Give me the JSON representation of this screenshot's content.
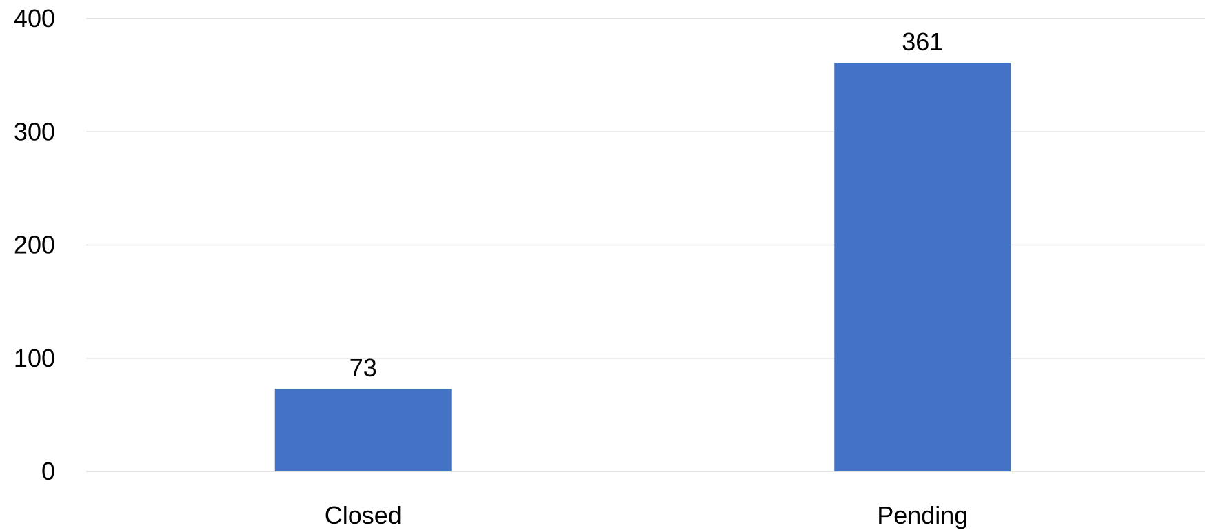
{
  "chart_data": {
    "type": "bar",
    "title": "",
    "xlabel": "",
    "ylabel": "",
    "categories": [
      "Closed",
      "Pending"
    ],
    "values": [
      73,
      361
    ],
    "data_labels": [
      "73",
      "361"
    ],
    "ylim": [
      0,
      400
    ],
    "yticks": [
      0,
      100,
      200,
      300,
      400
    ],
    "ytick_labels": [
      "0",
      "100",
      "200",
      "300",
      "400"
    ],
    "grid": true,
    "legend": "none",
    "bar_color": "#4472c4",
    "grid_color": "#d9d9d9"
  }
}
